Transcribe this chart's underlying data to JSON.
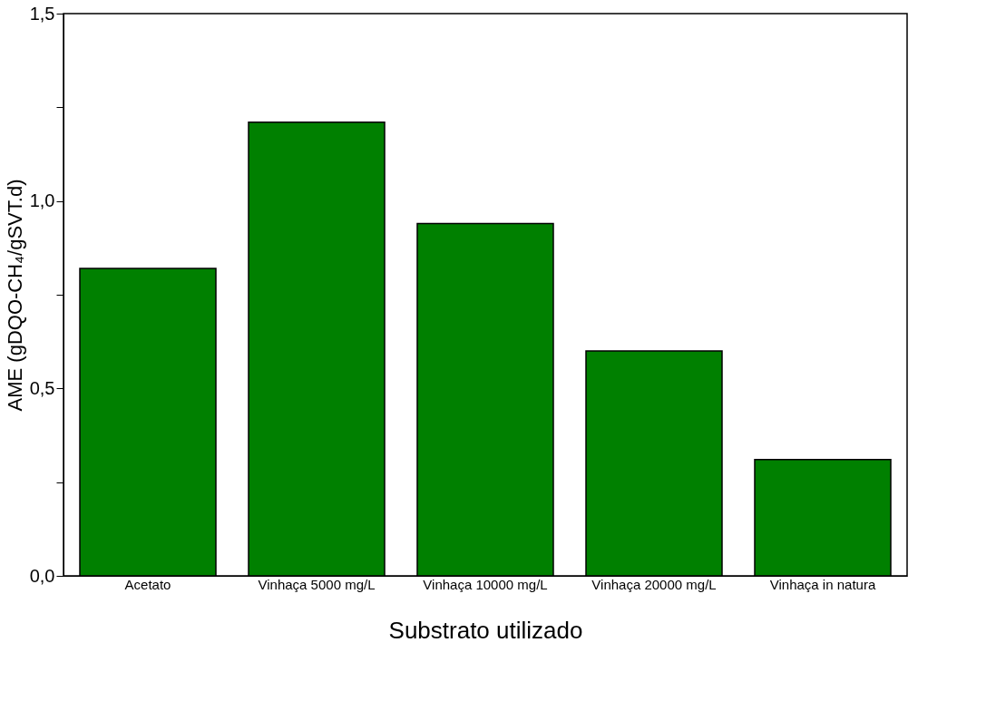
{
  "chart_data": {
    "type": "bar",
    "xlabel": "Substrato utilizado",
    "ylabel": "AME (gDQO-CH₄/gSVT.d)",
    "categories": [
      "Acetato",
      "Vinhaça 5000 mg/L",
      "Vinhaça 10000 mg/L",
      "Vinhaça 20000 mg/L",
      "Vinhaça in natura"
    ],
    "values": [
      0.82,
      1.21,
      0.94,
      0.6,
      0.31
    ],
    "color": "#008000",
    "ylim": [
      0,
      1.5
    ],
    "yticks": [
      {
        "value": 0,
        "label": "0,0"
      },
      {
        "value": 0.25,
        "label": null
      },
      {
        "value": 0.5,
        "label": "0,5"
      },
      {
        "value": 0.75,
        "label": null
      },
      {
        "value": 1.0,
        "label": "1,0"
      },
      {
        "value": 1.25,
        "label": null
      },
      {
        "value": 1.5,
        "label": "1,5"
      }
    ],
    "grid": false
  }
}
